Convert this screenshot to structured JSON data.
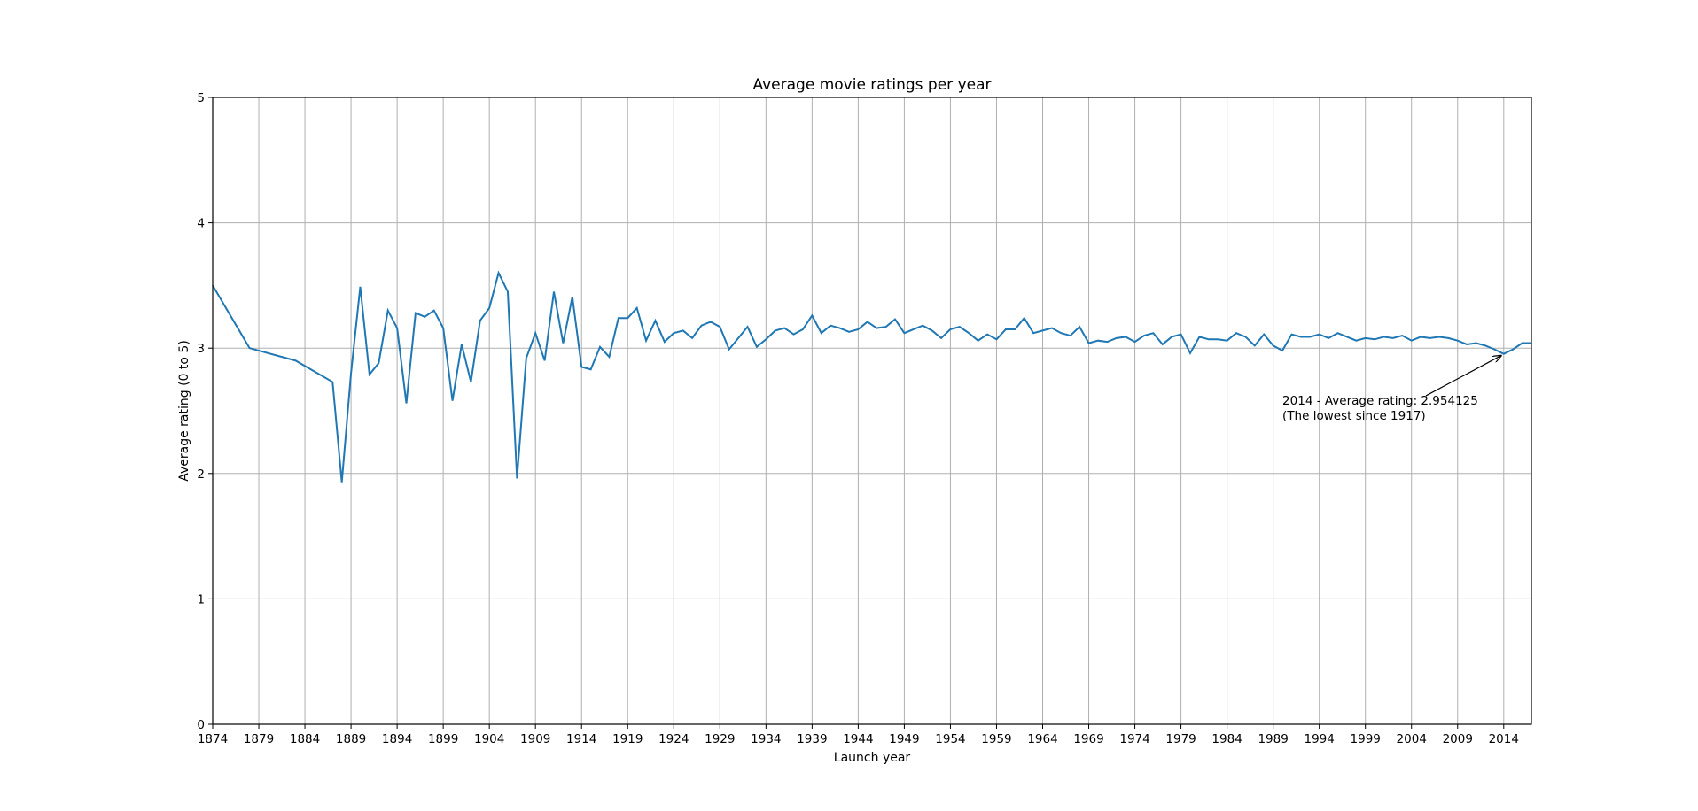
{
  "chart_data": {
    "type": "line",
    "title": "Average movie ratings per year",
    "xlabel": "Launch year",
    "ylabel": "Average rating (0 to 5)",
    "xlim": [
      1874,
      2017
    ],
    "ylim": [
      0,
      5
    ],
    "grid": true,
    "x_ticks": [
      1874,
      1879,
      1884,
      1889,
      1894,
      1899,
      1904,
      1909,
      1914,
      1919,
      1924,
      1929,
      1934,
      1939,
      1944,
      1949,
      1954,
      1959,
      1964,
      1969,
      1974,
      1979,
      1984,
      1989,
      1994,
      1999,
      2004,
      2009,
      2014
    ],
    "y_ticks": [
      0,
      1,
      2,
      3,
      4,
      5
    ],
    "line_color": "#1f77b4",
    "series": [
      {
        "x": [
          1874,
          1878,
          1883,
          1887,
          1888,
          1889,
          1890,
          1891,
          1892,
          1893,
          1894,
          1895,
          1896,
          1897,
          1898,
          1899,
          1900,
          1901,
          1902,
          1903,
          1904,
          1905,
          1906,
          1907,
          1908,
          1909,
          1910,
          1911,
          1912,
          1913,
          1914,
          1915,
          1916,
          1917,
          1918,
          1919,
          1920,
          1921,
          1922,
          1923,
          1924,
          1925,
          1926,
          1927,
          1928,
          1929,
          1930,
          1931,
          1932,
          1933,
          1934,
          1935,
          1936,
          1937,
          1938,
          1939,
          1940,
          1941,
          1942,
          1943,
          1944,
          1945,
          1946,
          1947,
          1948,
          1949,
          1950,
          1951,
          1952,
          1953,
          1954,
          1955,
          1956,
          1957,
          1958,
          1959,
          1960,
          1961,
          1962,
          1963,
          1964,
          1965,
          1966,
          1967,
          1968,
          1969,
          1970,
          1971,
          1972,
          1973,
          1974,
          1975,
          1976,
          1977,
          1978,
          1979,
          1980,
          1981,
          1982,
          1983,
          1984,
          1985,
          1986,
          1987,
          1988,
          1989,
          1990,
          1991,
          1992,
          1993,
          1994,
          1995,
          1996,
          1997,
          1998,
          1999,
          2000,
          2001,
          2002,
          2003,
          2004,
          2005,
          2006,
          2007,
          2008,
          2009,
          2010,
          2011,
          2012,
          2013,
          2014,
          2015,
          2016,
          2017
        ],
        "values": [
          3.5,
          3.0,
          2.9,
          2.73,
          1.93,
          2.8,
          3.49,
          2.79,
          2.88,
          3.3,
          3.16,
          2.56,
          3.28,
          3.25,
          3.3,
          3.16,
          2.58,
          3.03,
          2.73,
          3.22,
          3.32,
          3.6,
          3.45,
          1.96,
          2.92,
          3.12,
          2.9,
          3.45,
          3.04,
          3.41,
          2.85,
          2.83,
          3.01,
          2.93,
          3.24,
          3.24,
          3.32,
          3.06,
          3.22,
          3.05,
          3.12,
          3.14,
          3.08,
          3.18,
          3.21,
          3.17,
          2.99,
          3.08,
          3.17,
          3.01,
          3.07,
          3.14,
          3.16,
          3.11,
          3.15,
          3.26,
          3.12,
          3.18,
          3.16,
          3.13,
          3.15,
          3.21,
          3.16,
          3.17,
          3.23,
          3.12,
          3.15,
          3.18,
          3.14,
          3.08,
          3.15,
          3.17,
          3.12,
          3.06,
          3.11,
          3.07,
          3.15,
          3.15,
          3.24,
          3.12,
          3.14,
          3.16,
          3.12,
          3.1,
          3.17,
          3.04,
          3.06,
          3.05,
          3.08,
          3.09,
          3.05,
          3.1,
          3.12,
          3.03,
          3.09,
          3.11,
          2.96,
          3.09,
          3.07,
          3.07,
          3.06,
          3.12,
          3.09,
          3.02,
          3.11,
          3.02,
          2.98,
          3.11,
          3.09,
          3.09,
          3.11,
          3.08,
          3.12,
          3.09,
          3.06,
          3.08,
          3.07,
          3.09,
          3.08,
          3.1,
          3.06,
          3.09,
          3.08,
          3.09,
          3.08,
          3.06,
          3.03,
          3.04,
          3.02,
          2.99,
          2.954125,
          2.99,
          3.04,
          3.04
        ]
      }
    ],
    "annotation": {
      "line1": "2014 - Average rating: 2.954125",
      "line2": "(The lowest since 1917)",
      "point": [
        2014,
        2.954125
      ],
      "text_at": [
        1990,
        2.55
      ]
    }
  }
}
